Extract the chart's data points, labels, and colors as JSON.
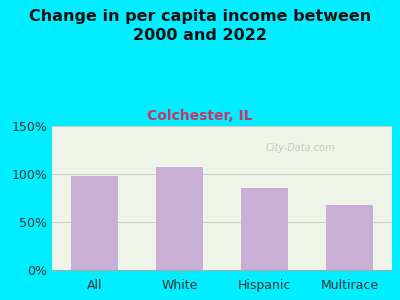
{
  "title": "Change in per capita income between\n2000 and 2022",
  "subtitle": "Colchester, IL",
  "categories": [
    "All",
    "White",
    "Hispanic",
    "Multirace"
  ],
  "values": [
    98,
    107,
    85,
    68
  ],
  "bar_color": "#c9aed6",
  "background_outer": "#00eeff",
  "background_inner": "#eef5e8",
  "title_fontsize": 11.5,
  "subtitle_fontsize": 10,
  "subtitle_color": "#cc3366",
  "title_color": "#111111",
  "tick_label_fontsize": 9,
  "ylim": [
    0,
    150
  ],
  "yticks": [
    0,
    50,
    100,
    150
  ],
  "watermark": "City-Data.com"
}
